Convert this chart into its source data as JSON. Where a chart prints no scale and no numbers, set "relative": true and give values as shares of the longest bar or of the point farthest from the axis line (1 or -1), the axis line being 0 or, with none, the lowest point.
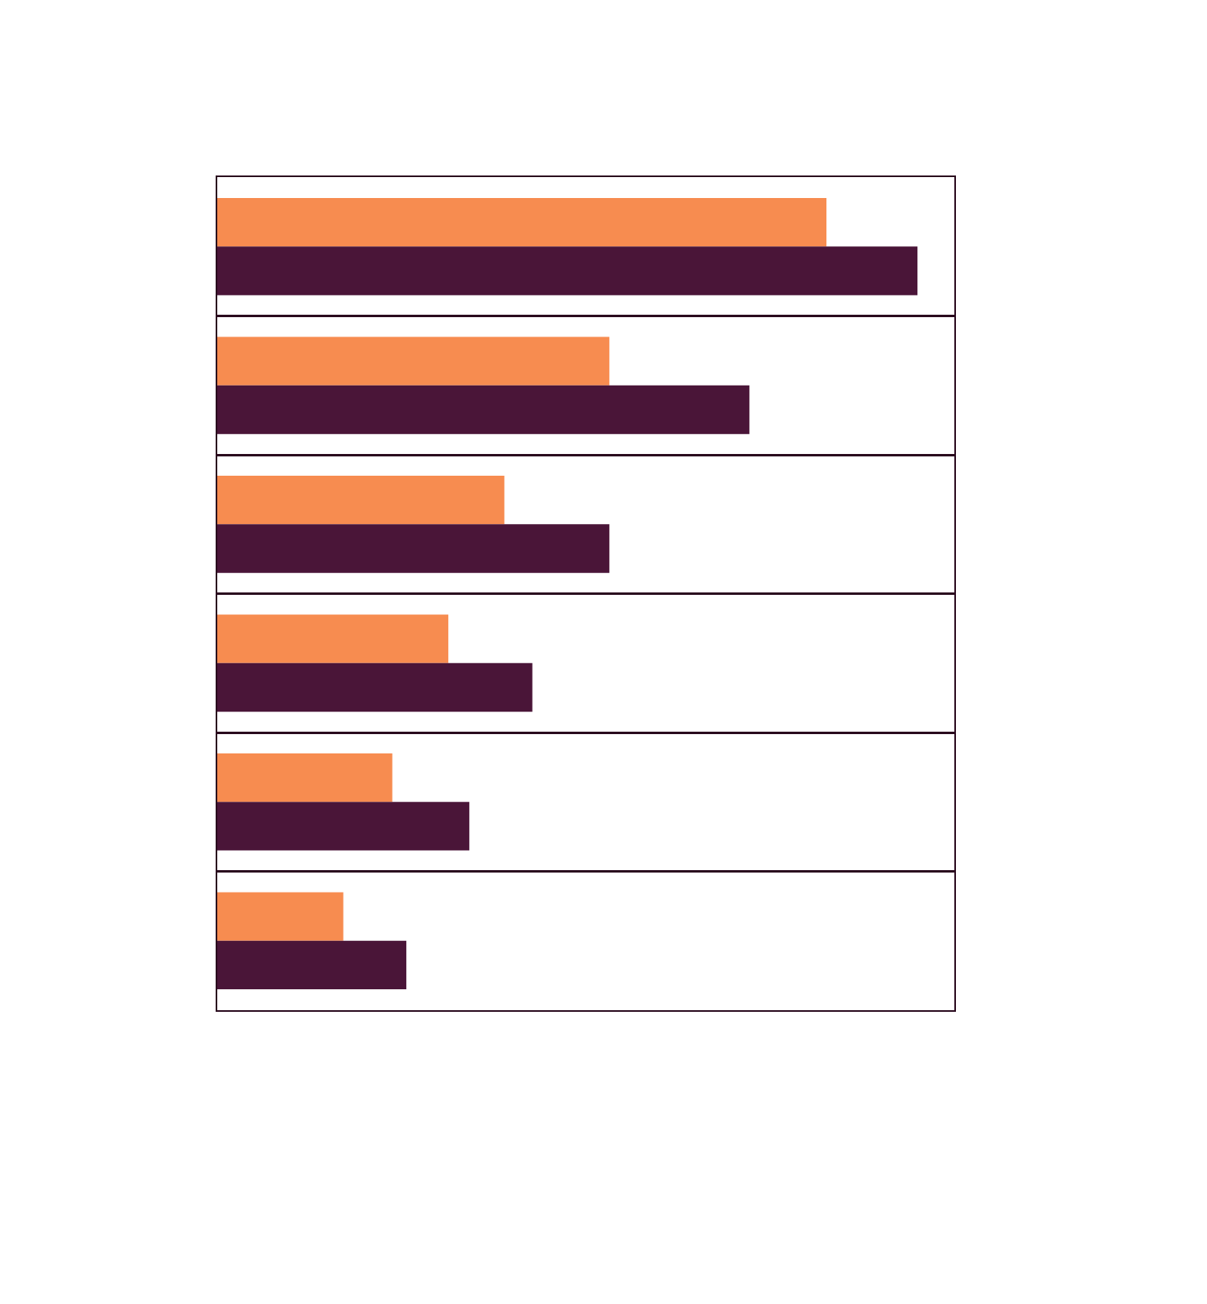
{
  "chart_data": {
    "type": "bar",
    "orientation": "horizontal",
    "relative": true,
    "categories": [
      null,
      null,
      null,
      null,
      null,
      null
    ],
    "series": [
      {
        "color": "#f78c50",
        "values": [
          0.87,
          0.56,
          0.41,
          0.33,
          0.25,
          0.18
        ]
      },
      {
        "color": "#4a1538",
        "values": [
          1.0,
          0.76,
          0.56,
          0.45,
          0.36,
          0.27
        ]
      }
    ],
    "grid": "y"
  }
}
